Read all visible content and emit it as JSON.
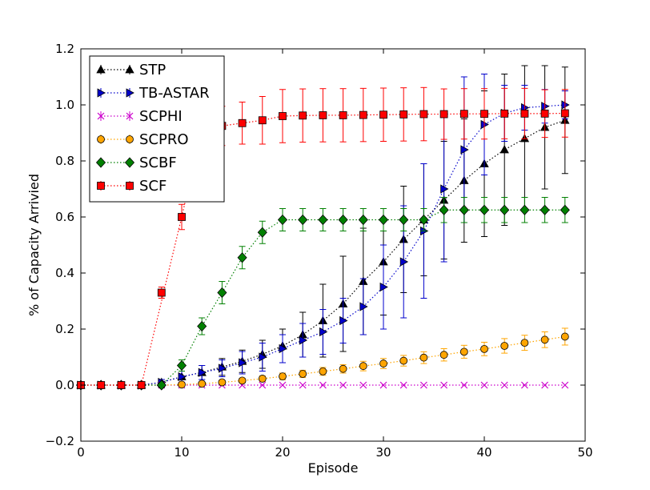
{
  "chart_data": {
    "type": "line",
    "xlabel": "Episode",
    "ylabel": "% of Capacity Arrivied",
    "xlim": [
      0,
      50
    ],
    "ylim": [
      -0.2,
      1.2
    ],
    "xticks": [
      "0",
      "10",
      "20",
      "30",
      "40",
      "50"
    ],
    "yticks": [
      "−0.2",
      "0.0",
      "0.2",
      "0.4",
      "0.6",
      "0.8",
      "1.0",
      "1.2"
    ],
    "legend_position": "top-left",
    "grid": false,
    "series": [
      {
        "name": "STP",
        "color": "#000000",
        "marker": "triangle-up",
        "x": [
          0,
          2,
          4,
          6,
          8,
          10,
          12,
          14,
          16,
          18,
          20,
          22,
          24,
          26,
          28,
          30,
          32,
          34,
          36,
          38,
          40,
          42,
          44,
          46,
          48
        ],
        "y": [
          0,
          0,
          0,
          0,
          0.01,
          0.03,
          0.045,
          0.065,
          0.085,
          0.11,
          0.14,
          0.18,
          0.23,
          0.29,
          0.37,
          0.44,
          0.52,
          0.59,
          0.66,
          0.73,
          0.79,
          0.84,
          0.88,
          0.92,
          0.945
        ],
        "err": [
          0,
          0,
          0,
          0,
          0.01,
          0.02,
          0.025,
          0.03,
          0.04,
          0.05,
          0.06,
          0.08,
          0.13,
          0.17,
          0.19,
          0.19,
          0.19,
          0.2,
          0.21,
          0.22,
          0.26,
          0.27,
          0.26,
          0.22,
          0.19
        ]
      },
      {
        "name": "TB-ASTAR",
        "color": "#0000cc",
        "marker": "triangle-right",
        "x": [
          0,
          2,
          4,
          6,
          8,
          10,
          12,
          14,
          16,
          18,
          20,
          22,
          24,
          26,
          28,
          30,
          32,
          34,
          36,
          38,
          40,
          42,
          44,
          46,
          48
        ],
        "y": [
          0,
          0,
          0,
          0,
          0.01,
          0.03,
          0.045,
          0.06,
          0.08,
          0.1,
          0.13,
          0.16,
          0.19,
          0.23,
          0.28,
          0.35,
          0.44,
          0.55,
          0.7,
          0.84,
          0.93,
          0.97,
          0.99,
          0.995,
          1.0
        ],
        "err": [
          0,
          0,
          0,
          0,
          0.01,
          0.02,
          0.025,
          0.03,
          0.04,
          0.05,
          0.05,
          0.06,
          0.08,
          0.08,
          0.1,
          0.15,
          0.2,
          0.24,
          0.26,
          0.26,
          0.18,
          0.1,
          0.08,
          0.06,
          0.05
        ]
      },
      {
        "name": "SCPHI",
        "color": "#cc00cc",
        "marker": "x",
        "x": [
          0,
          2,
          4,
          6,
          8,
          10,
          12,
          14,
          16,
          18,
          20,
          22,
          24,
          26,
          28,
          30,
          32,
          34,
          36,
          38,
          40,
          42,
          44,
          46,
          48
        ],
        "y": [
          0,
          0,
          0,
          0,
          0,
          0,
          0,
          0,
          0,
          0,
          0,
          0,
          0,
          0,
          0,
          0,
          0,
          0,
          0,
          0,
          0,
          0,
          0,
          0,
          0
        ],
        "err": [
          0,
          0,
          0,
          0,
          0,
          0,
          0,
          0,
          0,
          0,
          0,
          0,
          0,
          0,
          0,
          0,
          0,
          0,
          0,
          0,
          0,
          0,
          0,
          0,
          0
        ]
      },
      {
        "name": "SCPRO",
        "color": "#ffa500",
        "marker": "circle",
        "x": [
          0,
          2,
          4,
          6,
          8,
          10,
          12,
          14,
          16,
          18,
          20,
          22,
          24,
          26,
          28,
          30,
          32,
          34,
          36,
          38,
          40,
          42,
          44,
          46,
          48
        ],
        "y": [
          0,
          0,
          0,
          0,
          0,
          0.002,
          0.005,
          0.01,
          0.016,
          0.023,
          0.031,
          0.04,
          0.049,
          0.058,
          0.068,
          0.077,
          0.087,
          0.098,
          0.108,
          0.119,
          0.129,
          0.14,
          0.151,
          0.162,
          0.173
        ],
        "err": [
          0,
          0,
          0,
          0,
          0,
          0.003,
          0.005,
          0.006,
          0.008,
          0.01,
          0.012,
          0.013,
          0.014,
          0.015,
          0.017,
          0.018,
          0.019,
          0.021,
          0.022,
          0.023,
          0.024,
          0.026,
          0.027,
          0.028,
          0.03
        ]
      },
      {
        "name": "SCBF",
        "color": "#008000",
        "marker": "diamond",
        "x": [
          0,
          2,
          4,
          6,
          8,
          10,
          12,
          14,
          16,
          18,
          20,
          22,
          24,
          26,
          28,
          30,
          32,
          34,
          36,
          38,
          40,
          42,
          44,
          46,
          48
        ],
        "y": [
          0,
          0,
          0,
          0,
          0,
          0.07,
          0.21,
          0.33,
          0.455,
          0.545,
          0.59,
          0.59,
          0.59,
          0.59,
          0.59,
          0.59,
          0.59,
          0.59,
          0.625,
          0.625,
          0.625,
          0.625,
          0.625,
          0.625,
          0.625
        ],
        "err": [
          0,
          0,
          0,
          0,
          0,
          0.02,
          0.03,
          0.04,
          0.04,
          0.04,
          0.04,
          0.04,
          0.04,
          0.04,
          0.04,
          0.04,
          0.04,
          0.04,
          0.045,
          0.045,
          0.045,
          0.045,
          0.045,
          0.045,
          0.045
        ]
      },
      {
        "name": "SCF",
        "color": "#ff0000",
        "marker": "square",
        "x": [
          0,
          2,
          4,
          6,
          10,
          12,
          14,
          16,
          18,
          20,
          22,
          24,
          26,
          28,
          30,
          32,
          34,
          36,
          38,
          40,
          42,
          44,
          46,
          48
        ],
        "y": [
          0,
          0,
          0,
          0,
          0.6,
          0.915,
          0.925,
          0.935,
          0.945,
          0.96,
          0.962,
          0.963,
          0.963,
          0.964,
          0.965,
          0.966,
          0.967,
          0.967,
          0.968,
          0.968,
          0.969,
          0.969,
          0.969,
          0.97
        ],
        "err": [
          0,
          0,
          0,
          0,
          0.045,
          0.06,
          0.07,
          0.075,
          0.085,
          0.095,
          0.095,
          0.095,
          0.095,
          0.095,
          0.095,
          0.095,
          0.095,
          0.09,
          0.09,
          0.09,
          0.09,
          0.09,
          0.085,
          0.085
        ],
        "extra_points": [
          {
            "x": 8,
            "y": 0.33,
            "err": 0.02
          }
        ]
      }
    ]
  }
}
